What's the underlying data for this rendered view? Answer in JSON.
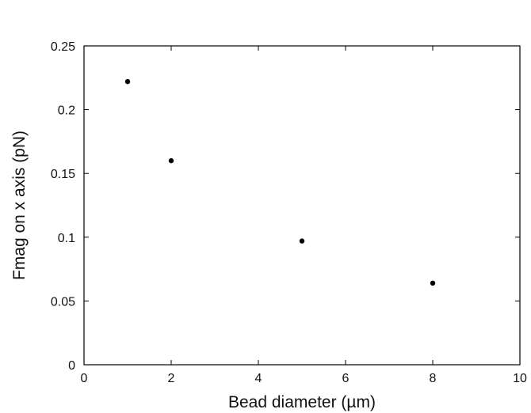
{
  "chart_data": {
    "type": "scatter",
    "title": "",
    "xlabel": "Bead diameter (µm)",
    "ylabel": "Fmag on x axis (pN)",
    "xlim": [
      0,
      10
    ],
    "ylim": [
      0,
      0.25
    ],
    "x_ticks": [
      0,
      2,
      4,
      6,
      8,
      10
    ],
    "y_ticks": [
      0,
      0.05,
      0.1,
      0.15,
      0.2,
      0.25
    ],
    "x_tick_labels": [
      "0",
      "2",
      "4",
      "6",
      "8",
      "10"
    ],
    "y_tick_labels": [
      "0",
      "0.05",
      "0.1",
      "0.15",
      "0.2",
      "0.25"
    ],
    "grid": false,
    "legend": "none",
    "colors": {
      "points": "#000000",
      "axes": "#000000",
      "background": "#ffffff"
    },
    "series": [
      {
        "x": [
          1,
          2,
          5,
          8
        ],
        "y": [
          0.222,
          0.16,
          0.097,
          0.064
        ]
      }
    ]
  }
}
